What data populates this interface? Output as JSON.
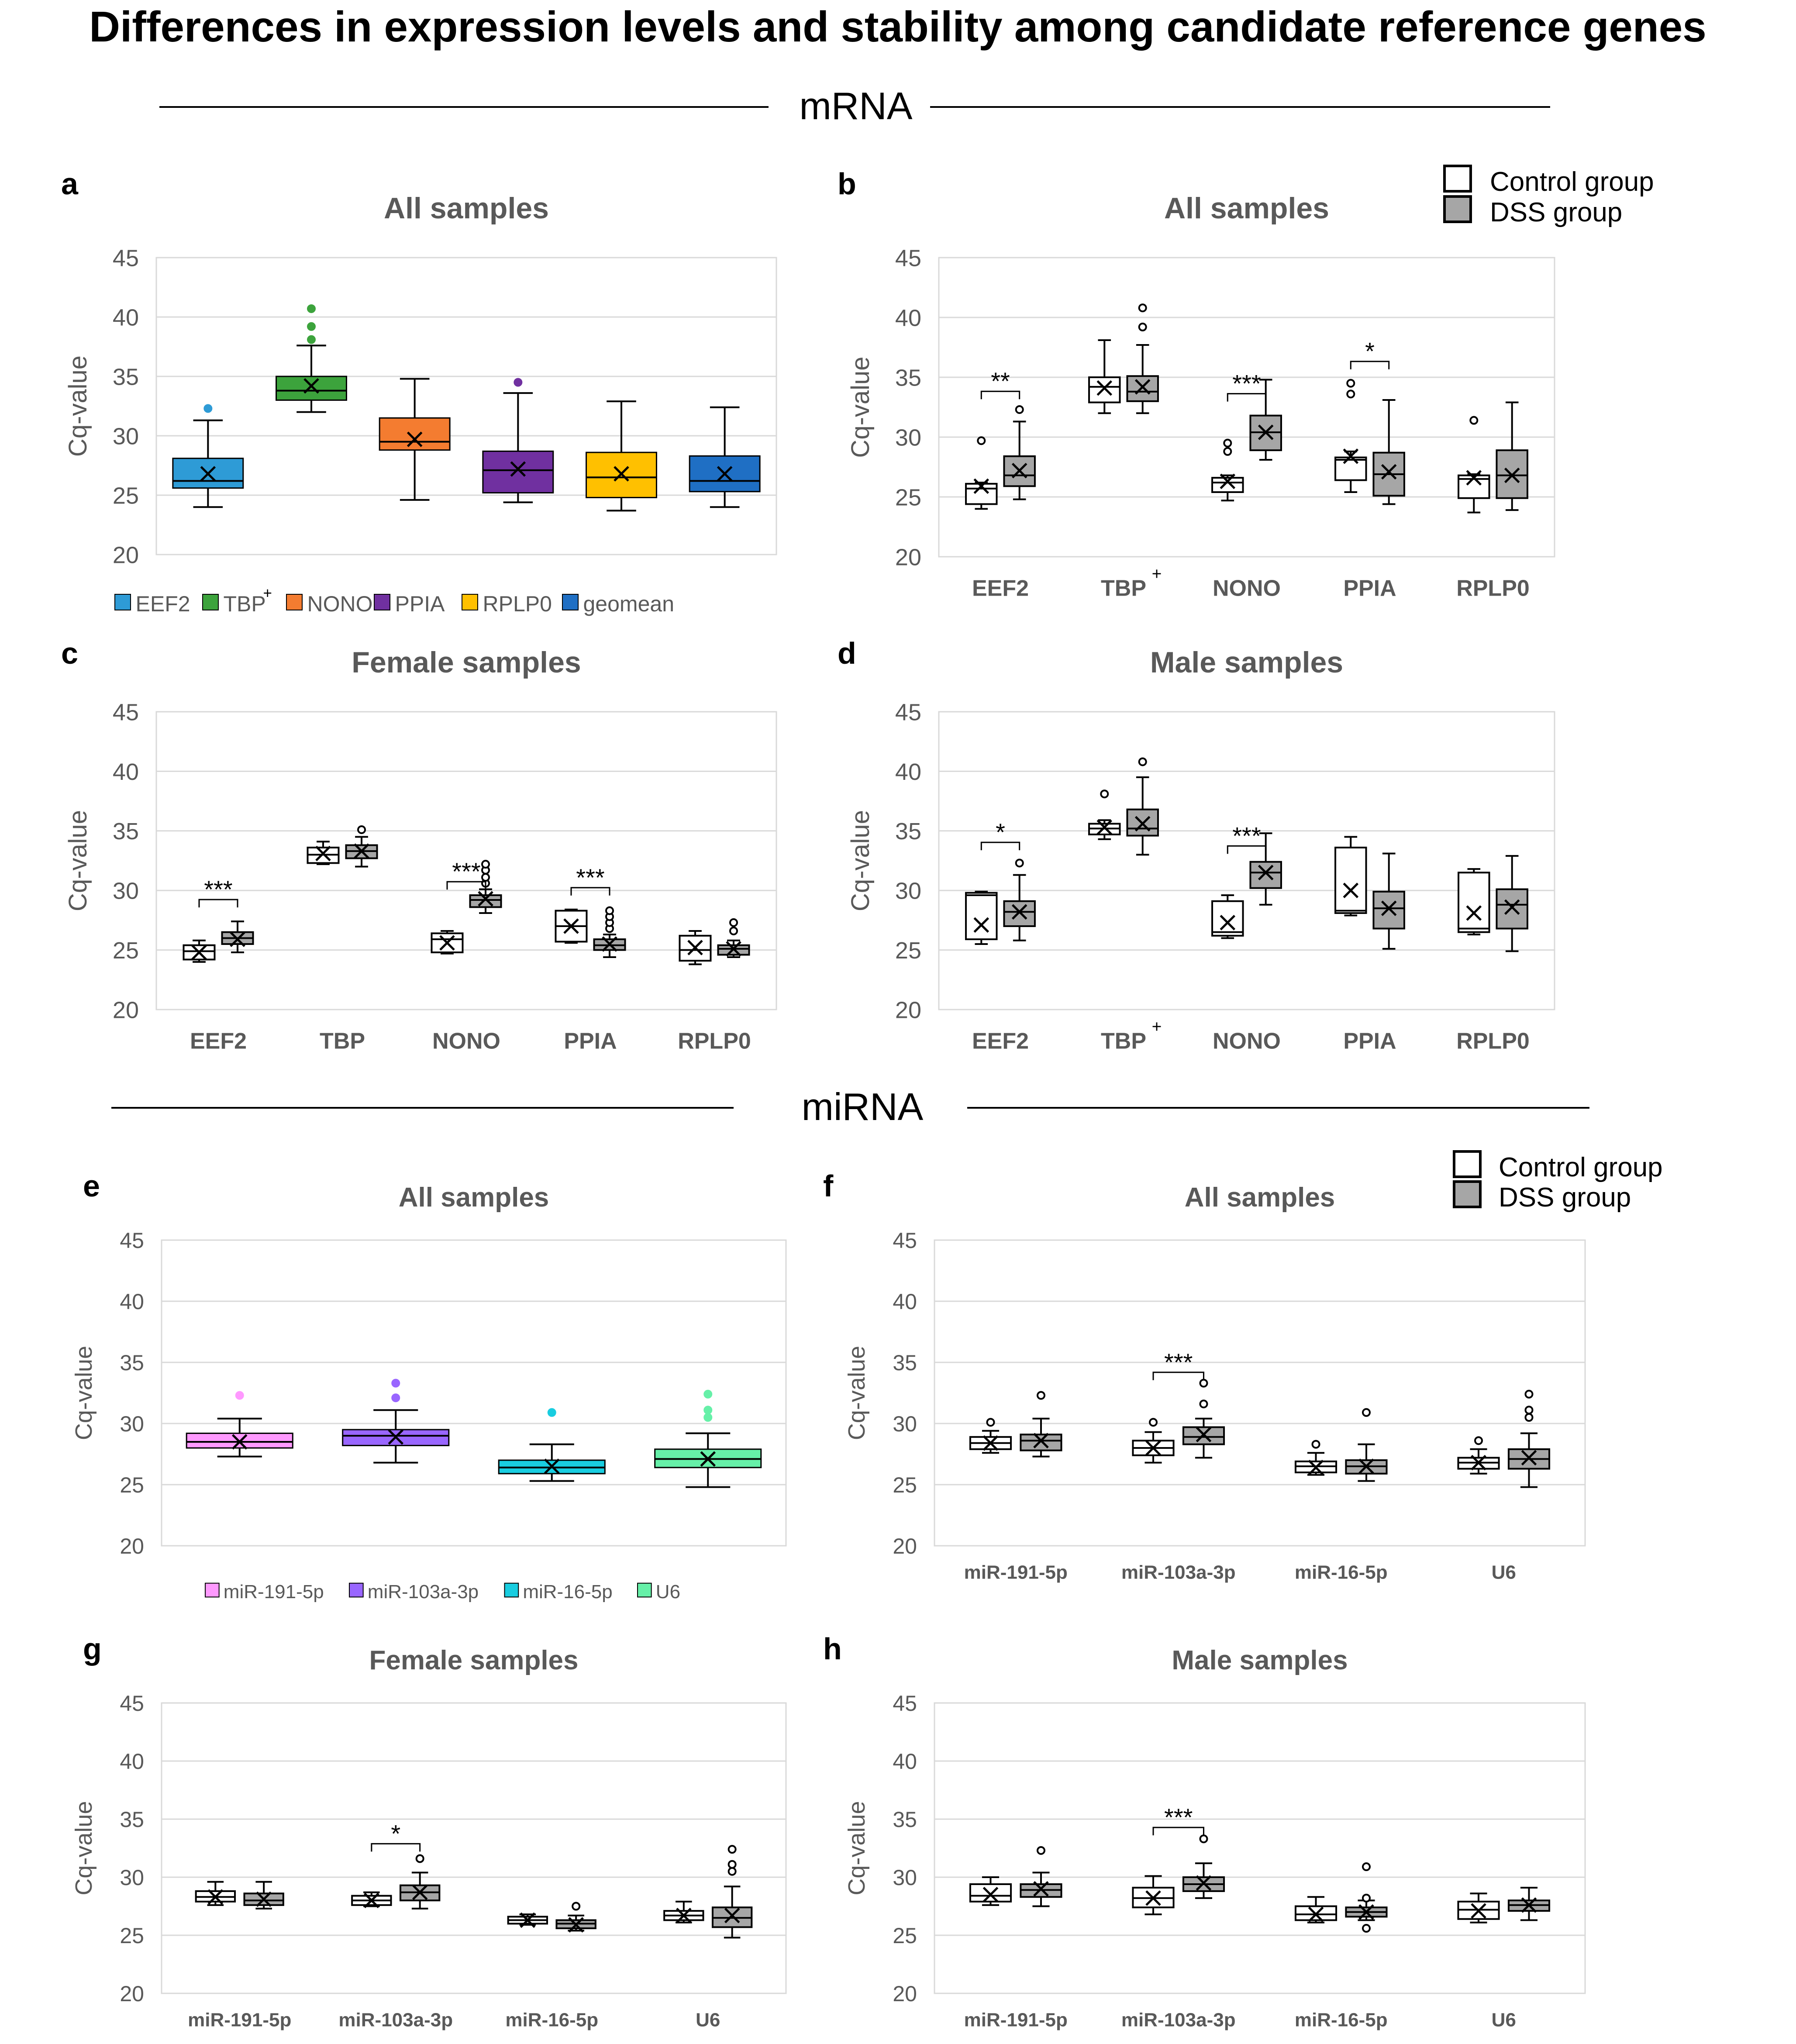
{
  "figure": {
    "title": "Differences in expression levels and stability among candidate reference genes",
    "section_mrna": "mRNA",
    "section_mirna": "miRNA",
    "legend_groups": [
      "Control group",
      "DSS group"
    ],
    "ylabel": "Cq-value",
    "yticks": [
      20,
      25,
      30,
      35,
      40,
      45
    ],
    "colors": {
      "control_fill": "#ffffff",
      "dss_fill": "#a6a6a6",
      "grid": "#d9d9d9",
      "axis_text": "#595959",
      "title_text": "#595959"
    }
  },
  "chart_data": [
    {
      "id": "a",
      "panel_label": "a",
      "type": "box",
      "mode": "colored",
      "title": "All samples",
      "ylabel": "Cq-value",
      "ylim": [
        20,
        45
      ],
      "legend_entries": [
        "EEF2",
        "TBP",
        "NONO",
        "PPIA",
        "RPLP0",
        "geomean"
      ],
      "legend_marks": [
        "",
        "+",
        "",
        "",
        "",
        ""
      ],
      "colors": [
        "#2e9bd6",
        "#3ca33c",
        "#f47c30",
        "#7030a0",
        "#ffc000",
        "#1f6fc4"
      ],
      "boxes": [
        {
          "name": "EEF2",
          "min": 24,
          "q1": 25.6,
          "median": 26.2,
          "q3": 28.1,
          "max": 31.3,
          "mean": 26.8,
          "outliers": [
            32.3
          ]
        },
        {
          "name": "TBP",
          "min": 32,
          "q1": 33,
          "median": 33.8,
          "q3": 35,
          "max": 37.6,
          "mean": 34.2,
          "outliers": [
            38.1,
            39.2,
            40.7
          ]
        },
        {
          "name": "NONO",
          "min": 24.6,
          "q1": 28.8,
          "median": 29.5,
          "q3": 31.5,
          "max": 34.8,
          "mean": 29.7,
          "outliers": []
        },
        {
          "name": "PPIA",
          "min": 24.4,
          "q1": 25.2,
          "median": 27.1,
          "q3": 28.7,
          "max": 33.6,
          "mean": 27.2,
          "outliers": [
            34.5
          ]
        },
        {
          "name": "RPLP0",
          "min": 23.7,
          "q1": 24.8,
          "median": 26.5,
          "q3": 28.6,
          "max": 32.9,
          "mean": 26.8,
          "outliers": []
        },
        {
          "name": "geomean",
          "min": 24,
          "q1": 25.3,
          "median": 26.2,
          "q3": 28.3,
          "max": 32.4,
          "mean": 26.8,
          "outliers": []
        }
      ]
    },
    {
      "id": "b",
      "panel_label": "b",
      "type": "box",
      "mode": "paired",
      "title": "All samples",
      "ylabel": "Cq-value",
      "ylim": [
        20,
        45
      ],
      "categories": [
        "EEF2",
        "TBP",
        "NONO",
        "PPIA",
        "RPLP0"
      ],
      "category_marks": [
        "",
        "+",
        "",
        "",
        ""
      ],
      "significance": [
        "**",
        "",
        "***",
        "*",
        ""
      ],
      "control": [
        {
          "min": 24,
          "q1": 24.4,
          "median": 25.7,
          "q3": 26.1,
          "max": 26.2,
          "mean": 25.9,
          "outliers": [
            29.7
          ]
        },
        {
          "min": 32,
          "q1": 32.9,
          "median": 34.2,
          "q3": 35,
          "max": 38.1,
          "mean": 34.1,
          "outliers": []
        },
        {
          "min": 24.7,
          "q1": 25.4,
          "median": 26.2,
          "q3": 26.6,
          "max": 26.8,
          "mean": 26.3,
          "outliers": [
            28.8,
            29.5
          ]
        },
        {
          "min": 25.4,
          "q1": 26.4,
          "median": 28.1,
          "q3": 28.3,
          "max": 28.8,
          "mean": 28.4,
          "outliers": [
            33.6,
            34.5
          ]
        },
        {
          "min": 23.7,
          "q1": 24.9,
          "median": 26.5,
          "q3": 26.8,
          "max": 26.9,
          "mean": 26.6,
          "outliers": [
            31.4
          ]
        }
      ],
      "dss": [
        {
          "min": 24.8,
          "q1": 25.9,
          "median": 26.8,
          "q3": 28.4,
          "max": 31.3,
          "mean": 27.2,
          "outliers": [
            32.3
          ]
        },
        {
          "min": 32,
          "q1": 33,
          "median": 33.8,
          "q3": 35.1,
          "max": 37.7,
          "mean": 34.2,
          "outliers": [
            39.2,
            40.8
          ]
        },
        {
          "min": 28.1,
          "q1": 28.9,
          "median": 30.4,
          "q3": 31.8,
          "max": 34.8,
          "mean": 30.4,
          "outliers": []
        },
        {
          "min": 24.4,
          "q1": 25.1,
          "median": 26.9,
          "q3": 28.7,
          "max": 33.1,
          "mean": 27.1,
          "outliers": []
        },
        {
          "min": 23.9,
          "q1": 24.9,
          "median": 26.8,
          "q3": 28.9,
          "max": 32.9,
          "mean": 26.8,
          "outliers": []
        }
      ]
    },
    {
      "id": "c",
      "panel_label": "c",
      "type": "box",
      "mode": "paired",
      "title": "Female samples",
      "ylabel": "Cq-value",
      "ylim": [
        20,
        45
      ],
      "categories": [
        "EEF2",
        "TBP",
        "NONO",
        "PPIA",
        "RPLP0"
      ],
      "category_marks": [
        "",
        "",
        "",
        "",
        ""
      ],
      "significance": [
        "***",
        "",
        "***",
        "***",
        ""
      ],
      "control": [
        {
          "min": 24,
          "q1": 24.2,
          "median": 24.9,
          "q3": 25.4,
          "max": 25.8,
          "mean": 24.8,
          "outliers": []
        },
        {
          "min": 32.2,
          "q1": 32.3,
          "median": 33,
          "q3": 33.6,
          "max": 34.1,
          "mean": 33.1,
          "outliers": []
        },
        {
          "min": 24.7,
          "q1": 24.8,
          "median": 25.9,
          "q3": 26.4,
          "max": 26.6,
          "mean": 25.6,
          "outliers": []
        },
        {
          "min": 25.6,
          "q1": 25.7,
          "median": 27,
          "q3": 28.3,
          "max": 28.4,
          "mean": 27,
          "outliers": []
        },
        {
          "min": 23.8,
          "q1": 24.1,
          "median": 25,
          "q3": 26.2,
          "max": 26.6,
          "mean": 25.2,
          "outliers": []
        }
      ],
      "dss": [
        {
          "min": 24.8,
          "q1": 25.5,
          "median": 26,
          "q3": 26.5,
          "max": 27.4,
          "mean": 25.9,
          "outliers": []
        },
        {
          "min": 32,
          "q1": 32.7,
          "median": 33.3,
          "q3": 33.8,
          "max": 34.5,
          "mean": 33.3,
          "outliers": [
            35.1
          ]
        },
        {
          "min": 28.1,
          "q1": 28.6,
          "median": 29.2,
          "q3": 29.6,
          "max": 30.1,
          "mean": 29.3,
          "outliers": [
            30.6,
            31.1,
            31.7,
            32.2
          ]
        },
        {
          "min": 24.4,
          "q1": 25,
          "median": 25.4,
          "q3": 25.9,
          "max": 26.3,
          "mean": 25.5,
          "outliers": [
            26.8,
            27.3,
            27.8,
            28.3
          ]
        },
        {
          "min": 24.4,
          "q1": 24.6,
          "median": 25.1,
          "q3": 25.4,
          "max": 25.8,
          "mean": 25.1,
          "outliers": [
            26.6,
            27.3
          ]
        }
      ]
    },
    {
      "id": "d",
      "panel_label": "d",
      "type": "box",
      "mode": "paired",
      "title": "Male samples",
      "ylabel": "Cq-value",
      "ylim": [
        20,
        45
      ],
      "categories": [
        "EEF2",
        "TBP",
        "NONO",
        "PPIA",
        "RPLP0"
      ],
      "category_marks": [
        "",
        "+",
        "",
        "",
        ""
      ],
      "significance": [
        "*",
        "",
        "***",
        "",
        ""
      ],
      "control": [
        {
          "min": 25.5,
          "q1": 25.9,
          "median": 29.6,
          "q3": 29.8,
          "max": 29.9,
          "mean": 27.1,
          "outliers": []
        },
        {
          "min": 34.3,
          "q1": 34.7,
          "median": 35.2,
          "q3": 35.6,
          "max": 35.9,
          "mean": 35.3,
          "outliers": [
            38.1
          ]
        },
        {
          "min": 26,
          "q1": 26.2,
          "median": 26.5,
          "q3": 29.1,
          "max": 29.6,
          "mean": 27.3,
          "outliers": []
        },
        {
          "min": 27.9,
          "q1": 28.1,
          "median": 28.3,
          "q3": 33.6,
          "max": 34.5,
          "mean": 30,
          "outliers": []
        },
        {
          "min": 26.3,
          "q1": 26.5,
          "median": 26.8,
          "q3": 31.5,
          "max": 31.8,
          "mean": 28.1,
          "outliers": []
        }
      ],
      "dss": [
        {
          "min": 25.8,
          "q1": 27,
          "median": 28.2,
          "q3": 29.1,
          "max": 31.3,
          "mean": 28.2,
          "outliers": [
            32.3
          ]
        },
        {
          "min": 33,
          "q1": 34.6,
          "median": 35.2,
          "q3": 36.8,
          "max": 39.5,
          "mean": 35.6,
          "outliers": [
            40.8
          ]
        },
        {
          "min": 28.8,
          "q1": 30.2,
          "median": 31.5,
          "q3": 32.4,
          "max": 34.8,
          "mean": 31.5,
          "outliers": []
        },
        {
          "min": 25.1,
          "q1": 26.8,
          "median": 28.5,
          "q3": 29.9,
          "max": 33.1,
          "mean": 28.5,
          "outliers": []
        },
        {
          "min": 24.9,
          "q1": 26.8,
          "median": 28.8,
          "q3": 30.1,
          "max": 32.9,
          "mean": 28.6,
          "outliers": []
        }
      ]
    },
    {
      "id": "e",
      "panel_label": "e",
      "type": "box",
      "mode": "colored",
      "title": "All samples",
      "ylabel": "Cq-value",
      "ylim": [
        20,
        45
      ],
      "legend_entries": [
        "miR-191-5p",
        "miR-103a-3p",
        "miR-16-5p",
        "U6"
      ],
      "legend_marks": [
        "",
        "",
        "",
        ""
      ],
      "colors": [
        "#ff99ff",
        "#9966ff",
        "#19cde0",
        "#66f0a8"
      ],
      "boxes": [
        {
          "name": "miR-191-5p",
          "min": 27.3,
          "q1": 28,
          "median": 28.5,
          "q3": 29.2,
          "max": 30.4,
          "mean": 28.5,
          "outliers": [
            32.3
          ]
        },
        {
          "name": "miR-103a-3p",
          "min": 26.8,
          "q1": 28.2,
          "median": 29,
          "q3": 29.5,
          "max": 31.1,
          "mean": 28.9,
          "outliers": [
            32.1,
            33.3
          ]
        },
        {
          "name": "miR-16-5p",
          "min": 25.3,
          "q1": 25.9,
          "median": 26.4,
          "q3": 27,
          "max": 28.3,
          "mean": 26.5,
          "outliers": [
            30.9
          ]
        },
        {
          "name": "U6",
          "min": 24.8,
          "q1": 26.4,
          "median": 27.1,
          "q3": 27.9,
          "max": 29.2,
          "mean": 27.1,
          "outliers": [
            30.5,
            31.1,
            32.4
          ]
        }
      ]
    },
    {
      "id": "f",
      "panel_label": "f",
      "type": "box",
      "mode": "paired",
      "title": "All samples",
      "ylabel": "Cq-value",
      "ylim": [
        20,
        45
      ],
      "categories": [
        "miR-191-5p",
        "miR-103a-3p",
        "miR-16-5p",
        "U6"
      ],
      "category_marks": [
        "",
        "",
        "",
        ""
      ],
      "significance": [
        "",
        "***",
        "",
        ""
      ],
      "control": [
        {
          "min": 27.6,
          "q1": 27.9,
          "median": 28.4,
          "q3": 28.9,
          "max": 29.4,
          "mean": 28.4,
          "outliers": [
            30.1
          ]
        },
        {
          "min": 26.8,
          "q1": 27.4,
          "median": 28,
          "q3": 28.6,
          "max": 29.3,
          "mean": 28,
          "outliers": [
            30.1
          ]
        },
        {
          "min": 25.8,
          "q1": 26,
          "median": 26.5,
          "q3": 26.9,
          "max": 27.6,
          "mean": 26.4,
          "outliers": [
            28.3
          ]
        },
        {
          "min": 25.9,
          "q1": 26.3,
          "median": 26.8,
          "q3": 27.2,
          "max": 27.9,
          "mean": 26.8,
          "outliers": [
            28.6
          ]
        }
      ],
      "dss": [
        {
          "min": 27.3,
          "q1": 27.8,
          "median": 28.6,
          "q3": 29.1,
          "max": 30.4,
          "mean": 28.6,
          "outliers": [
            32.3
          ]
        },
        {
          "min": 27.2,
          "q1": 28.3,
          "median": 28.9,
          "q3": 29.7,
          "max": 30.4,
          "mean": 29.1,
          "outliers": [
            31.6,
            33.3
          ]
        },
        {
          "min": 25.3,
          "q1": 25.9,
          "median": 26.5,
          "q3": 27,
          "max": 28.3,
          "mean": 26.5,
          "outliers": [
            30.9
          ]
        },
        {
          "min": 24.8,
          "q1": 26.3,
          "median": 27.1,
          "q3": 27.9,
          "max": 29.2,
          "mean": 27.2,
          "outliers": [
            30.5,
            31.1,
            32.4
          ]
        }
      ]
    },
    {
      "id": "g",
      "panel_label": "g",
      "type": "box",
      "mode": "paired",
      "title": "Female samples",
      "ylabel": "Cq-value",
      "ylim": [
        20,
        45
      ],
      "categories": [
        "miR-191-5p",
        "miR-103a-3p",
        "miR-16-5p",
        "U6"
      ],
      "category_marks": [
        "",
        "",
        "",
        ""
      ],
      "significance": [
        "",
        "*",
        "",
        ""
      ],
      "control": [
        {
          "min": 27.6,
          "q1": 27.9,
          "median": 28.3,
          "q3": 28.8,
          "max": 29.6,
          "mean": 28.3,
          "outliers": []
        },
        {
          "min": 27.5,
          "q1": 27.6,
          "median": 28,
          "q3": 28.4,
          "max": 28.7,
          "mean": 28,
          "outliers": []
        },
        {
          "min": 25.9,
          "q1": 26,
          "median": 26.3,
          "q3": 26.6,
          "max": 26.8,
          "mean": 26.3,
          "outliers": []
        },
        {
          "min": 26.1,
          "q1": 26.3,
          "median": 26.7,
          "q3": 27.1,
          "max": 27.9,
          "mean": 26.7,
          "outliers": []
        }
      ],
      "dss": [
        {
          "min": 27.3,
          "q1": 27.6,
          "median": 28,
          "q3": 28.6,
          "max": 29.6,
          "mean": 28.1,
          "outliers": []
        },
        {
          "min": 27.3,
          "q1": 28,
          "median": 28.7,
          "q3": 29.3,
          "max": 30.4,
          "mean": 28.7,
          "outliers": [
            31.6
          ]
        },
        {
          "min": 25.4,
          "q1": 25.6,
          "median": 26,
          "q3": 26.3,
          "max": 26.7,
          "mean": 25.9,
          "outliers": [
            27.5
          ]
        },
        {
          "min": 24.8,
          "q1": 25.7,
          "median": 26.5,
          "q3": 27.4,
          "max": 29.2,
          "mean": 26.7,
          "outliers": [
            30.5,
            31.1,
            32.4
          ]
        }
      ]
    },
    {
      "id": "h",
      "panel_label": "h",
      "type": "box",
      "mode": "paired",
      "title": "Male samples",
      "ylabel": "Cq-value",
      "ylim": [
        20,
        45
      ],
      "categories": [
        "miR-191-5p",
        "miR-103a-3p",
        "miR-16-5p",
        "U6"
      ],
      "category_marks": [
        "",
        "",
        "",
        ""
      ],
      "significance": [
        "",
        "***",
        "",
        ""
      ],
      "control": [
        {
          "min": 27.6,
          "q1": 27.9,
          "median": 28.4,
          "q3": 29.4,
          "max": 30,
          "mean": 28.5,
          "outliers": []
        },
        {
          "min": 26.8,
          "q1": 27.4,
          "median": 28.2,
          "q3": 29.1,
          "max": 30.1,
          "mean": 28.2,
          "outliers": []
        },
        {
          "min": 26.1,
          "q1": 26.3,
          "median": 26.8,
          "q3": 27.5,
          "max": 28.3,
          "mean": 26.8,
          "outliers": []
        },
        {
          "min": 26.1,
          "q1": 26.4,
          "median": 27.2,
          "q3": 27.9,
          "max": 28.6,
          "mean": 27.1,
          "outliers": []
        }
      ],
      "dss": [
        {
          "min": 27.5,
          "q1": 28.3,
          "median": 28.9,
          "q3": 29.4,
          "max": 30.4,
          "mean": 29,
          "outliers": [
            32.3
          ]
        },
        {
          "min": 28.2,
          "q1": 28.8,
          "median": 29.4,
          "q3": 30,
          "max": 31.2,
          "mean": 29.5,
          "outliers": [
            33.3
          ]
        },
        {
          "min": 26.3,
          "q1": 26.6,
          "median": 27,
          "q3": 27.4,
          "max": 28,
          "mean": 27,
          "outliers": [
            25.6,
            28.2,
            30.9
          ]
        },
        {
          "min": 26.3,
          "q1": 27.1,
          "median": 27.6,
          "q3": 28,
          "max": 29.1,
          "mean": 27.6,
          "outliers": []
        }
      ]
    }
  ]
}
